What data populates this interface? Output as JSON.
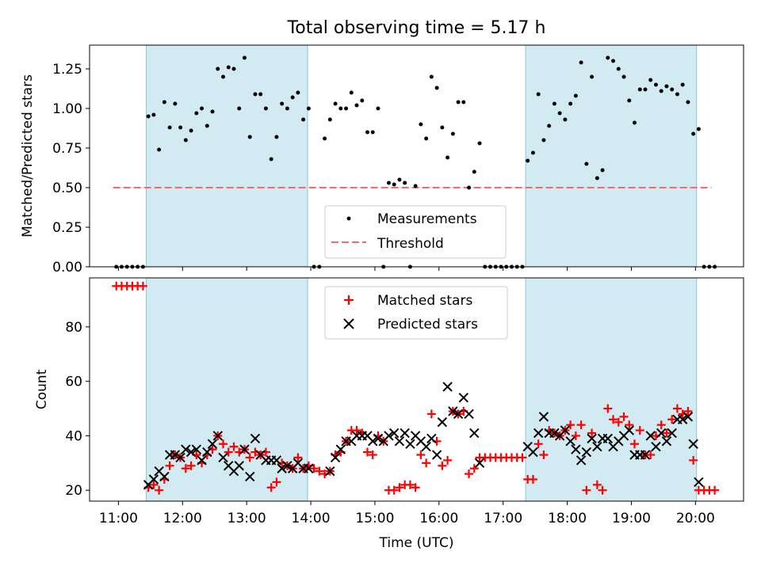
{
  "chart_data": [
    {
      "type": "scatter",
      "title": "Total observing time = 5.17 h",
      "xlabel": "",
      "ylabel": "Matched/Predicted stars",
      "ylim": [
        0,
        1.4
      ],
      "yticks": [
        "0.00",
        "0.25",
        "0.50",
        "0.75",
        "1.00",
        "1.25"
      ],
      "xlim_hours": [
        10.55,
        20.75
      ],
      "shaded_spans": [
        [
          "11:26",
          "13:57"
        ],
        [
          "17:21",
          "20:01"
        ]
      ],
      "shade_color": "#add8e6",
      "legend": {
        "placement": "bottom-center",
        "entries": [
          "Measurements",
          "Threshold"
        ]
      },
      "series": [
        {
          "name": "Measurements",
          "marker": "dot",
          "color": "#000000",
          "x": [
            "10:58",
            "11:03",
            "11:08",
            "11:13",
            "11:18",
            "11:23",
            "11:28",
            "11:33",
            "11:38",
            "11:43",
            "11:48",
            "11:53",
            "11:58",
            "12:03",
            "12:08",
            "12:13",
            "12:18",
            "12:23",
            "12:28",
            "12:33",
            "12:38",
            "12:43",
            "12:48",
            "12:53",
            "12:58",
            "13:03",
            "13:08",
            "13:13",
            "13:18",
            "13:23",
            "13:28",
            "13:33",
            "13:38",
            "13:43",
            "13:48",
            "13:53",
            "13:58",
            "14:03",
            "14:08",
            "14:13",
            "14:18",
            "14:23",
            "14:28",
            "14:33",
            "14:38",
            "14:43",
            "14:48",
            "14:53",
            "14:58",
            "15:03",
            "15:08",
            "15:13",
            "15:18",
            "15:23",
            "15:28",
            "15:33",
            "15:38",
            "15:43",
            "15:48",
            "15:53",
            "15:58",
            "16:03",
            "16:08",
            "16:13",
            "16:18",
            "16:23",
            "16:28",
            "16:33",
            "16:38",
            "16:43",
            "16:48",
            "16:53",
            "16:58",
            "17:03",
            "17:08",
            "17:13",
            "17:18",
            "17:23",
            "17:28",
            "17:33",
            "17:38",
            "17:43",
            "17:48",
            "17:53",
            "17:58",
            "18:03",
            "18:08",
            "18:13",
            "18:18",
            "18:23",
            "18:28",
            "18:33",
            "18:38",
            "18:43",
            "18:48",
            "18:53",
            "18:58",
            "19:03",
            "19:08",
            "19:13",
            "19:18",
            "19:23",
            "19:28",
            "19:33",
            "19:38",
            "19:43",
            "19:48",
            "19:53",
            "19:58",
            "20:03",
            "20:08",
            "20:13",
            "20:18"
          ],
          "y": [
            0,
            0,
            0,
            0,
            0,
            0,
            0.95,
            0.96,
            0.74,
            1.04,
            0.88,
            1.03,
            0.88,
            0.8,
            0.86,
            0.97,
            1.0,
            0.89,
            0.98,
            1.25,
            1.2,
            1.26,
            1.25,
            1.0,
            1.32,
            0.82,
            1.09,
            1.09,
            1.0,
            0.68,
            0.82,
            1.03,
            1.0,
            1.07,
            1.1,
            0.93,
            1.0,
            0,
            0,
            0.81,
            0.93,
            1.03,
            1.0,
            1.0,
            1.1,
            1.02,
            1.05,
            0.85,
            0.85,
            1.0,
            0,
            0.53,
            0.52,
            0.55,
            0.53,
            0,
            0.51,
            0.9,
            0.81,
            1.2,
            1.13,
            0.88,
            0.69,
            0.84,
            1.04,
            1.04,
            0.5,
            0.6,
            0.78,
            0,
            0,
            0,
            0,
            0,
            0,
            0,
            0,
            0.67,
            0.72,
            1.09,
            0.8,
            0.89,
            1.03,
            0.97,
            0.93,
            1.03,
            1.08,
            1.29,
            0.65,
            1.2,
            0.56,
            0.61,
            1.32,
            1.3,
            1.25,
            1.2,
            1.05,
            0.91,
            1.12,
            1.12,
            1.18,
            1.15,
            1.11,
            1.14,
            1.12,
            1.09,
            1.15,
            1.04,
            0.84,
            0.87,
            0,
            0,
            0
          ]
        },
        {
          "name": "Threshold",
          "style": "dashed",
          "color": "#ff6666",
          "x": [
            "10:55",
            "20:15"
          ],
          "y": [
            0.5,
            0.5
          ]
        }
      ]
    },
    {
      "type": "scatter",
      "title": "",
      "xlabel": "Time (UTC)",
      "ylabel": "Count",
      "ylim": [
        16,
        98
      ],
      "yticks": [
        "20",
        "40",
        "60",
        "80"
      ],
      "xlim_hours": [
        10.55,
        20.75
      ],
      "xticks": [
        "11:00",
        "12:00",
        "13:00",
        "14:00",
        "15:00",
        "16:00",
        "17:00",
        "18:00",
        "19:00",
        "20:00"
      ],
      "shaded_spans": [
        [
          "11:26",
          "13:57"
        ],
        [
          "17:21",
          "20:01"
        ]
      ],
      "shade_color": "#add8e6",
      "legend": {
        "placement": "top-center",
        "entries": [
          "Matched stars",
          "Predicted stars"
        ]
      },
      "series": [
        {
          "name": "Matched stars",
          "marker": "plus",
          "color": "#ff0000",
          "x": [
            "10:58",
            "11:03",
            "11:08",
            "11:13",
            "11:18",
            "11:23",
            "11:28",
            "11:33",
            "11:38",
            "11:43",
            "11:48",
            "11:53",
            "11:58",
            "12:03",
            "12:08",
            "12:13",
            "12:18",
            "12:23",
            "12:28",
            "12:33",
            "12:38",
            "12:43",
            "12:48",
            "12:53",
            "12:58",
            "13:03",
            "13:08",
            "13:13",
            "13:18",
            "13:23",
            "13:28",
            "13:33",
            "13:38",
            "13:43",
            "13:48",
            "13:53",
            "13:58",
            "14:03",
            "14:08",
            "14:13",
            "14:18",
            "14:23",
            "14:28",
            "14:33",
            "14:38",
            "14:43",
            "14:48",
            "14:53",
            "14:58",
            "15:03",
            "15:08",
            "15:13",
            "15:18",
            "15:23",
            "15:28",
            "15:33",
            "15:38",
            "15:43",
            "15:48",
            "15:53",
            "15:58",
            "16:03",
            "16:08",
            "16:13",
            "16:18",
            "16:23",
            "16:28",
            "16:33",
            "16:38",
            "16:43",
            "16:48",
            "16:53",
            "16:58",
            "17:03",
            "17:08",
            "17:13",
            "17:18",
            "17:23",
            "17:28",
            "17:33",
            "17:38",
            "17:43",
            "17:48",
            "17:53",
            "17:58",
            "18:03",
            "18:08",
            "18:13",
            "18:18",
            "18:23",
            "18:28",
            "18:33",
            "18:38",
            "18:43",
            "18:48",
            "18:53",
            "18:58",
            "19:03",
            "19:08",
            "19:13",
            "19:18",
            "19:23",
            "19:28",
            "19:33",
            "19:38",
            "19:43",
            "19:48",
            "19:53",
            "19:58",
            "20:03",
            "20:08",
            "20:13",
            "20:18"
          ],
          "y": [
            95,
            95,
            95,
            95,
            95,
            95,
            21,
            22,
            20,
            24,
            29,
            33,
            32,
            28,
            29,
            33,
            30,
            33,
            35,
            40,
            37,
            34,
            36,
            34,
            35,
            32,
            34,
            33,
            34,
            21,
            23,
            30,
            29,
            28,
            32,
            28,
            29,
            28,
            27,
            26,
            27,
            33,
            34,
            38,
            42,
            42,
            41,
            34,
            33,
            40,
            38,
            20,
            20,
            21,
            22,
            22,
            21,
            33,
            30,
            48,
            38,
            29,
            31,
            49,
            48,
            49,
            26,
            28,
            32,
            32,
            32,
            32,
            32,
            32,
            32,
            32,
            32,
            24,
            24,
            37,
            33,
            42,
            41,
            40,
            42,
            44,
            40,
            44,
            20,
            41,
            22,
            20,
            50,
            46,
            45,
            47,
            44,
            37,
            42,
            33,
            33,
            40,
            44,
            41,
            46,
            50,
            48,
            49,
            31,
            20,
            20,
            20,
            20
          ]
        },
        {
          "name": "Predicted stars",
          "marker": "x",
          "color": "#000000",
          "x": [
            "11:28",
            "11:33",
            "11:38",
            "11:43",
            "11:48",
            "11:53",
            "11:58",
            "12:03",
            "12:08",
            "12:13",
            "12:18",
            "12:23",
            "12:28",
            "12:33",
            "12:38",
            "12:43",
            "12:48",
            "12:53",
            "12:58",
            "13:03",
            "13:08",
            "13:13",
            "13:18",
            "13:23",
            "13:28",
            "13:33",
            "13:38",
            "13:43",
            "13:48",
            "13:53",
            "13:58",
            "14:18",
            "14:23",
            "14:28",
            "14:33",
            "14:38",
            "14:43",
            "14:48",
            "14:53",
            "14:58",
            "15:03",
            "15:08",
            "15:13",
            "15:18",
            "15:23",
            "15:28",
            "15:33",
            "15:38",
            "15:43",
            "15:48",
            "15:53",
            "15:58",
            "16:03",
            "16:08",
            "16:13",
            "16:18",
            "16:23",
            "16:28",
            "16:33",
            "16:38",
            "17:23",
            "17:28",
            "17:33",
            "17:38",
            "17:43",
            "17:48",
            "17:53",
            "17:58",
            "18:03",
            "18:08",
            "18:13",
            "18:18",
            "18:23",
            "18:28",
            "18:33",
            "18:38",
            "18:43",
            "18:48",
            "18:53",
            "18:58",
            "19:03",
            "19:08",
            "19:13",
            "19:18",
            "19:23",
            "19:28",
            "19:33",
            "19:38",
            "19:43",
            "19:48",
            "19:53",
            "19:58",
            "20:03"
          ],
          "y": [
            22,
            24,
            27,
            25,
            33,
            33,
            32,
            35,
            34,
            35,
            31,
            34,
            37,
            40,
            32,
            29,
            27,
            29,
            35,
            25,
            39,
            33,
            31,
            31,
            31,
            28,
            29,
            28,
            30,
            28,
            28,
            27,
            32,
            35,
            38,
            38,
            40,
            40,
            40,
            38,
            39,
            38,
            40,
            41,
            38,
            41,
            37,
            40,
            38,
            36,
            39,
            33,
            45,
            58,
            49,
            48,
            54,
            48,
            41,
            30,
            36,
            34,
            41,
            47,
            41,
            41,
            40,
            42,
            38,
            35,
            31,
            34,
            39,
            36,
            39,
            39,
            36,
            38,
            40,
            42,
            33,
            33,
            33,
            40,
            36,
            41,
            38,
            41,
            46,
            46,
            47,
            37,
            23
          ]
        }
      ]
    }
  ]
}
